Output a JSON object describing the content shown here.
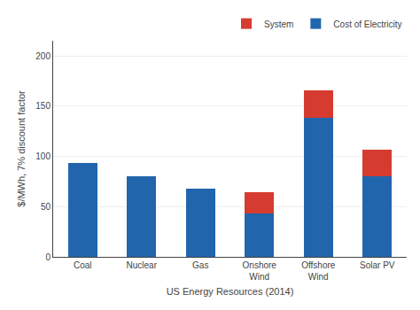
{
  "chart_data": {
    "type": "bar",
    "stacked": true,
    "categories": [
      "Coal",
      "Nuclear",
      "Gas",
      "Onshore\nWind",
      "Offshore\nWind",
      "Solar PV"
    ],
    "series": [
      {
        "name": "Cost of Electricity",
        "color": "#2166ac",
        "values": [
          93,
          80,
          68,
          43,
          138,
          80
        ]
      },
      {
        "name": "System",
        "color": "#d63b2f",
        "values": [
          0,
          0,
          0,
          21,
          28,
          27
        ]
      }
    ],
    "xlabel": "US Energy Resources (2014)",
    "ylabel": "$/MWh, 7% discount factor",
    "ylim": [
      0,
      215
    ],
    "yticks": [
      0,
      50,
      100,
      150,
      200
    ],
    "grid": true,
    "legend": "upper right"
  }
}
